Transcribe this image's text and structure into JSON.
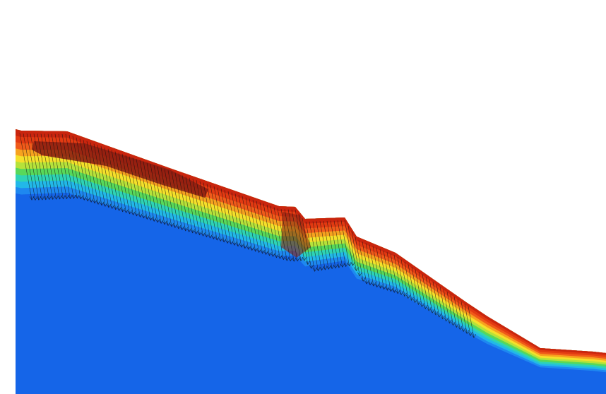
{
  "colors": {
    "background": "#ffffff",
    "stable_zone": "#1565e8",
    "contour_scale": [
      "#1565e8",
      "#1e88f0",
      "#22b8e8",
      "#2ed3b5",
      "#58d85a",
      "#b6e23a",
      "#f5e02a",
      "#f7a21f",
      "#f05a1a",
      "#e23a12",
      "#c9250e"
    ],
    "core_zone": "#8a1c10",
    "arrows": "#111111"
  },
  "legend": {}
}
